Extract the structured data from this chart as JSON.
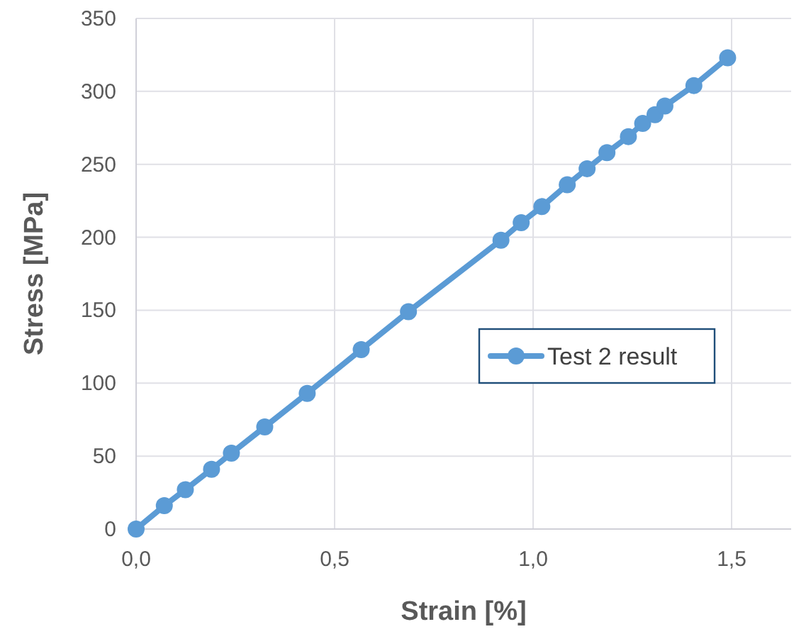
{
  "chart_data": {
    "type": "line",
    "xlabel": "Strain [%]",
    "ylabel": "Stress [MPa]",
    "xlim": [
      0,
      1.65
    ],
    "xticks": [
      {
        "value": 0,
        "label": "0,0"
      },
      {
        "value": 0.5,
        "label": "0,5"
      },
      {
        "value": 1,
        "label": "1,0"
      },
      {
        "value": 1.5,
        "label": "1,5"
      }
    ],
    "ylim": [
      0,
      350
    ],
    "yticks": [
      0,
      50,
      100,
      150,
      200,
      250,
      300,
      350
    ],
    "grid": true,
    "legend": "right",
    "marker": "circle",
    "line_style": "solid",
    "series": [
      {
        "name": "Test 2 result",
        "color": "#5b9bd5",
        "x": [
          0,
          0.071,
          0.124,
          0.19,
          0.24,
          0.324,
          0.431,
          0.567,
          0.686,
          0.919,
          0.97,
          1.022,
          1.086,
          1.136,
          1.186,
          1.24,
          1.276,
          1.307,
          1.332,
          1.405,
          1.49
        ],
        "values": [
          0,
          16,
          27,
          41,
          52,
          70,
          93,
          123,
          149,
          198,
          210,
          221,
          236,
          247,
          258,
          269,
          278,
          284,
          290,
          304,
          323
        ]
      }
    ]
  }
}
